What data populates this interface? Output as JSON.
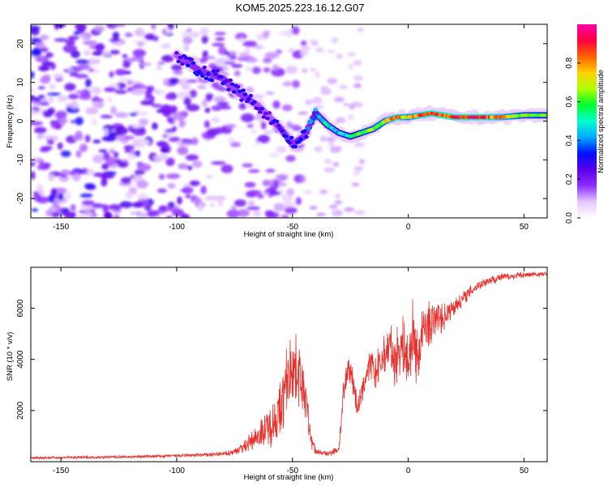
{
  "title": "KOM5.2025.223.16.12.G07",
  "chart_data": [
    {
      "type": "heatmap",
      "xlabel": "Height of straight line (km)",
      "ylabel": "Frequency (Hz)",
      "xlim": [
        -163,
        60
      ],
      "ylim": [
        -25,
        25
      ],
      "xticks": [
        -150,
        -100,
        -50,
        0,
        50
      ],
      "yticks": [
        -20,
        -10,
        0,
        10,
        20
      ],
      "colorbar": {
        "label": "Normalized spectral amplitude",
        "range": [
          0,
          1
        ],
        "ticks": [
          0.0,
          0.2,
          0.4,
          0.6,
          0.8
        ],
        "colors": [
          "#ffffff",
          "#e4c6ff",
          "#8f2dff",
          "#5a00e6",
          "#0010ff",
          "#00aaff",
          "#00ffcc",
          "#00ff30",
          "#b0ff00",
          "#ffd000",
          "#ff6000",
          "#ff0040",
          "#ff00aa"
        ]
      },
      "ridge": {
        "x": [
          -100,
          -95,
          -90,
          -85,
          -80,
          -75,
          -70,
          -65,
          -60,
          -55,
          -50,
          -45,
          -40,
          -35,
          -30,
          -25,
          -20,
          -15,
          -10,
          -5,
          0,
          5,
          10,
          20,
          30,
          40,
          50,
          60
        ],
        "freq": [
          17,
          15,
          13,
          12,
          11,
          8,
          6,
          4,
          1,
          -2,
          -6,
          -4,
          2,
          -1,
          -3,
          -4,
          -3,
          -2,
          0,
          1,
          1,
          1.5,
          2,
          1,
          1,
          1,
          1.5,
          1.5
        ],
        "amplitude": [
          0.25,
          0.3,
          0.32,
          0.3,
          0.3,
          0.28,
          0.3,
          0.27,
          0.25,
          0.3,
          0.3,
          0.32,
          0.45,
          0.5,
          0.45,
          0.55,
          0.65,
          0.65,
          0.7,
          0.9,
          0.72,
          0.85,
          0.9,
          0.9,
          0.95,
          0.8,
          0.65,
          0.6
        ]
      }
    },
    {
      "type": "line",
      "xlabel": "Height of straight line (km)",
      "ylabel": "SNR (10 * v/v)",
      "xlim": [
        -163,
        60
      ],
      "ylim": [
        0,
        7600
      ],
      "xticks": [
        -150,
        -100,
        -50,
        0,
        50
      ],
      "yticks": [
        2000,
        4000,
        6000
      ],
      "color": "#e8302c",
      "x": [
        -163,
        -140,
        -120,
        -100,
        -90,
        -80,
        -75,
        -70,
        -65,
        -60,
        -55,
        -52,
        -50,
        -48,
        -46,
        -44,
        -42,
        -40,
        -35,
        -30,
        -28,
        -26,
        -25,
        -24,
        -22,
        -20,
        -18,
        -16,
        -14,
        -12,
        -10,
        -8,
        -6,
        -4,
        -2,
        0,
        2,
        4,
        6,
        8,
        10,
        12,
        15,
        20,
        25,
        30,
        35,
        40,
        45,
        50,
        55,
        60
      ],
      "y": [
        150,
        170,
        190,
        230,
        260,
        300,
        400,
        650,
        1000,
        1400,
        2000,
        3400,
        3800,
        3500,
        3200,
        2200,
        900,
        400,
        300,
        500,
        2500,
        3800,
        3600,
        3200,
        2100,
        2600,
        3500,
        3800,
        3400,
        3900,
        4200,
        4600,
        3900,
        4400,
        4600,
        3700,
        5100,
        4000,
        5000,
        5400,
        5300,
        5700,
        5600,
        6100,
        6500,
        6900,
        7100,
        7200,
        7250,
        7300,
        7320,
        7330
      ],
      "noise_amplitude": [
        60,
        60,
        60,
        70,
        80,
        100,
        150,
        300,
        500,
        900,
        1400,
        1500,
        1500,
        1400,
        1200,
        900,
        400,
        150,
        100,
        200,
        700,
        600,
        600,
        600,
        500,
        600,
        600,
        700,
        800,
        900,
        900,
        1000,
        1100,
        1200,
        1300,
        1300,
        1400,
        1300,
        1200,
        1000,
        900,
        700,
        600,
        400,
        300,
        250,
        200,
        180,
        150,
        130,
        120,
        120
      ]
    }
  ]
}
